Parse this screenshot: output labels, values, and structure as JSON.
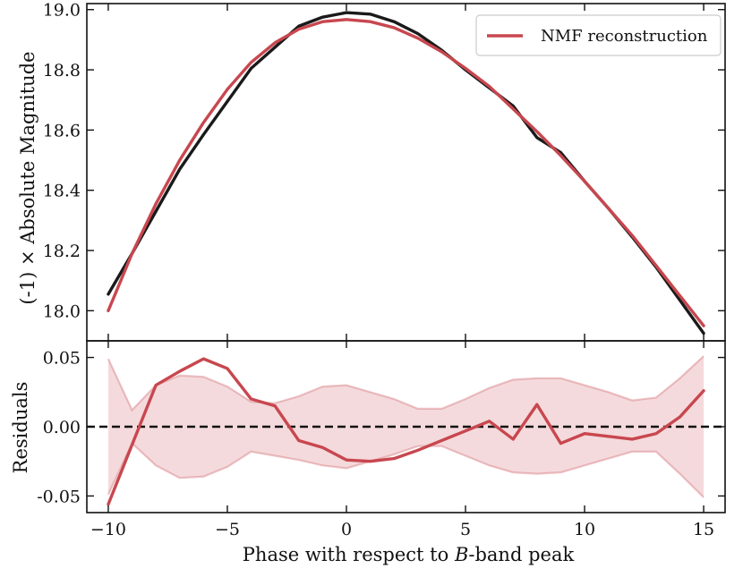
{
  "chart_data": [
    {
      "type": "line",
      "panel": "top",
      "ylabel": "(-1) × Absolute Magnitude",
      "ylim": [
        17.9,
        19.02
      ],
      "xlim": [
        -10.9,
        15.9
      ],
      "yticks": [
        18.0,
        18.2,
        18.4,
        18.6,
        18.8,
        19.0
      ],
      "ytick_labels": [
        "18.0",
        "18.2",
        "18.4",
        "18.6",
        "18.8",
        "19.0"
      ],
      "legend_loc": "upper right",
      "series": [
        {
          "name": "observed",
          "color": "#1a1a1a",
          "x": [
            -10,
            -9,
            -8,
            -7,
            -6,
            -5,
            -4,
            -3,
            -2,
            -1,
            0,
            1,
            2,
            3,
            4,
            5,
            6,
            7,
            8,
            9,
            10,
            11,
            12,
            13,
            14,
            15
          ],
          "y": [
            18.055,
            18.19,
            18.33,
            18.47,
            18.585,
            18.695,
            18.805,
            18.875,
            18.945,
            18.975,
            18.99,
            18.985,
            18.96,
            18.92,
            18.865,
            18.8,
            18.74,
            18.68,
            18.575,
            18.525,
            18.43,
            18.34,
            18.245,
            18.145,
            18.035,
            17.925
          ]
        },
        {
          "name": "NMF reconstruction",
          "color": "#c8474f",
          "x": [
            -10,
            -9,
            -8,
            -7,
            -6,
            -5,
            -4,
            -3,
            -2,
            -1,
            0,
            1,
            2,
            3,
            4,
            5,
            6,
            7,
            8,
            9,
            10,
            11,
            12,
            13,
            14,
            15
          ],
          "y": [
            18.0,
            18.19,
            18.355,
            18.5,
            18.625,
            18.735,
            18.825,
            18.89,
            18.935,
            18.96,
            18.967,
            18.96,
            18.94,
            18.905,
            18.86,
            18.805,
            18.745,
            18.67,
            18.595,
            18.515,
            18.43,
            18.34,
            18.25,
            18.15,
            18.05,
            17.95
          ]
        }
      ]
    },
    {
      "type": "line",
      "panel": "bottom",
      "xlabel_prefix": "Phase with respect to ",
      "xlabel_italic": "B",
      "xlabel_suffix": "-band peak",
      "ylabel": "Residuals",
      "ylim": [
        -0.062,
        0.062
      ],
      "xlim": [
        -10.9,
        15.9
      ],
      "yticks": [
        0.05,
        0.0,
        -0.05
      ],
      "ytick_labels": [
        "0.05",
        "0.00",
        "-0.05"
      ],
      "xticks": [
        -10,
        -5,
        0,
        5,
        10,
        15
      ],
      "xtick_labels": [
        "−10",
        "−5",
        "0",
        "5",
        "10",
        "15"
      ],
      "zero_line": 0.0,
      "series": [
        {
          "name": "residual",
          "color": "#c8474f",
          "x": [
            -10,
            -8,
            -7,
            -6,
            -5,
            -4,
            -3,
            -2,
            -1,
            0,
            1,
            2,
            3,
            4,
            5,
            6,
            7,
            8,
            9,
            10,
            11,
            12,
            13,
            14,
            15
          ],
          "y": [
            -0.056,
            0.03,
            0.04,
            0.049,
            0.042,
            0.02,
            0.015,
            -0.01,
            -0.015,
            -0.024,
            -0.025,
            -0.023,
            -0.017,
            -0.01,
            -0.003,
            0.004,
            -0.009,
            0.016,
            -0.012,
            -0.005,
            -0.007,
            -0.009,
            -0.005,
            0.007,
            0.026
          ]
        }
      ],
      "band": {
        "name": "uncertainty",
        "color": "#c8474f",
        "x": [
          -10,
          -9,
          -8,
          -7,
          -6,
          -5,
          -4,
          -3,
          -2,
          -1,
          0,
          1,
          2,
          3,
          4,
          5,
          6,
          7,
          8,
          9,
          10,
          11,
          12,
          13,
          14,
          15
        ],
        "upper": [
          0.049,
          0.012,
          0.03,
          0.037,
          0.036,
          0.029,
          0.018,
          0.017,
          0.022,
          0.029,
          0.03,
          0.025,
          0.02,
          0.013,
          0.013,
          0.02,
          0.028,
          0.034,
          0.035,
          0.035,
          0.03,
          0.025,
          0.019,
          0.021,
          0.035,
          0.051
        ],
        "lower": [
          -0.049,
          -0.012,
          -0.028,
          -0.037,
          -0.036,
          -0.029,
          -0.018,
          -0.021,
          -0.024,
          -0.028,
          -0.03,
          -0.025,
          -0.02,
          -0.014,
          -0.014,
          -0.021,
          -0.028,
          -0.033,
          -0.034,
          -0.033,
          -0.028,
          -0.023,
          -0.018,
          -0.018,
          -0.034,
          -0.051
        ]
      }
    }
  ]
}
